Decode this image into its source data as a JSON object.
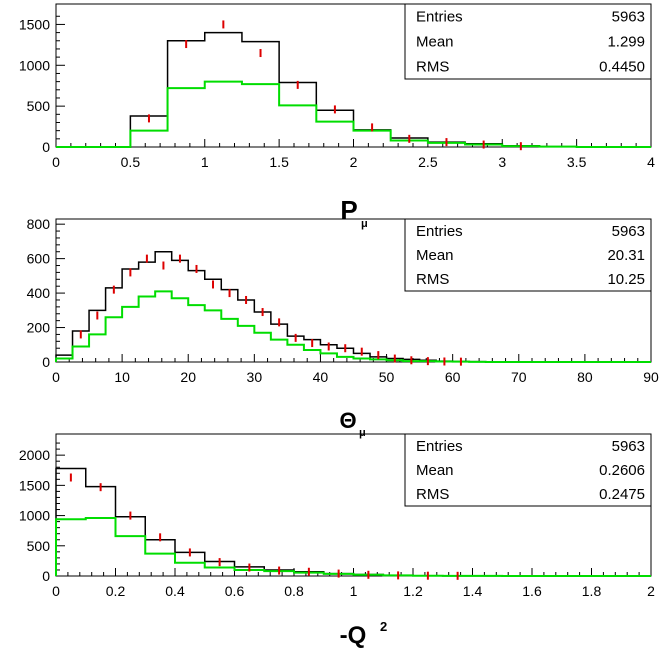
{
  "chart_data": [
    {
      "type": "histogram",
      "xlabel_main": "P",
      "xlabel_sub": "μ",
      "xlim": [
        0,
        4
      ],
      "ylim": [
        0,
        1750
      ],
      "xticks": [
        "0",
        "0.5",
        "1",
        "1.5",
        "2",
        "2.5",
        "3",
        "3.5",
        "4"
      ],
      "yticks": [
        "0",
        "500",
        "1000",
        "1500"
      ],
      "bin_edges": [
        0,
        0.25,
        0.5,
        0.75,
        1.0,
        1.25,
        1.5,
        1.75,
        2.0,
        2.25,
        2.5,
        2.75,
        3.0,
        3.25,
        3.5,
        3.75,
        4.0
      ],
      "series": [
        {
          "color": "#000000",
          "values": [
            0,
            0,
            380,
            1300,
            1400,
            1290,
            790,
            450,
            210,
            110,
            60,
            40,
            15,
            5,
            0,
            0
          ]
        },
        {
          "color": "#00dd00",
          "values": [
            0,
            0,
            200,
            720,
            800,
            770,
            510,
            310,
            200,
            80,
            50,
            30,
            10,
            5,
            0,
            0
          ]
        },
        {
          "color": "#dd0000",
          "style": "points",
          "values": [
            0,
            0,
            350,
            1260,
            1500,
            1150,
            760,
            460,
            240,
            100,
            60,
            30,
            10,
            0,
            0,
            0
          ]
        }
      ],
      "stats": {
        "entries_label": "Entries",
        "entries": "5963",
        "mean_label": "Mean",
        "mean": "1.299",
        "rms_label": "RMS",
        "rms": "0.4450"
      }
    },
    {
      "type": "histogram",
      "xlabel_main": "Θ",
      "xlabel_sub": "μ",
      "xlim": [
        0,
        90
      ],
      "ylim": [
        0,
        830
      ],
      "xticks": [
        "0",
        "10",
        "20",
        "30",
        "40",
        "50",
        "60",
        "70",
        "80",
        "90"
      ],
      "yticks": [
        "0",
        "200",
        "400",
        "600",
        "800"
      ],
      "bin_edges": [
        0,
        2.5,
        5,
        7.5,
        10,
        12.5,
        15,
        17.5,
        20,
        22.5,
        25,
        27.5,
        30,
        32.5,
        35,
        37.5,
        40,
        42.5,
        45,
        47.5,
        50,
        52.5,
        55,
        57.5,
        60,
        62.5,
        65,
        67.5,
        70,
        72.5,
        75,
        77.5,
        80,
        82.5,
        85,
        87.5,
        90
      ],
      "series": [
        {
          "color": "#000000",
          "values": [
            40,
            180,
            300,
            430,
            540,
            580,
            640,
            590,
            530,
            480,
            420,
            360,
            290,
            220,
            150,
            130,
            100,
            80,
            50,
            30,
            20,
            15,
            10,
            5,
            3,
            2,
            1,
            0,
            0,
            0,
            0,
            0,
            0,
            0,
            0,
            0
          ]
        },
        {
          "color": "#00dd00",
          "values": [
            20,
            90,
            160,
            260,
            320,
            380,
            410,
            370,
            330,
            300,
            250,
            210,
            170,
            130,
            100,
            70,
            50,
            30,
            20,
            15,
            10,
            5,
            5,
            3,
            2,
            1,
            0,
            0,
            0,
            0,
            0,
            0,
            0,
            0,
            0,
            0
          ]
        },
        {
          "color": "#dd0000",
          "style": "points",
          "values": [
            0,
            160,
            270,
            420,
            520,
            600,
            560,
            600,
            540,
            450,
            400,
            360,
            290,
            230,
            140,
            110,
            90,
            80,
            60,
            40,
            20,
            10,
            5,
            3,
            2,
            0,
            0,
            0,
            0,
            0,
            0,
            0,
            0,
            0,
            0,
            0
          ]
        }
      ],
      "stats": {
        "entries_label": "Entries",
        "entries": "5963",
        "mean_label": "Mean",
        "mean": "20.31",
        "rms_label": "RMS",
        "rms": "10.25"
      }
    },
    {
      "type": "histogram",
      "xlabel_main": "-Q",
      "xlabel_sup": "2",
      "xlim": [
        0,
        2
      ],
      "ylim": [
        0,
        2350
      ],
      "xticks": [
        "0",
        "0.2",
        "0.4",
        "0.6",
        "0.8",
        "1",
        "1.2",
        "1.4",
        "1.6",
        "1.8",
        "2"
      ],
      "yticks": [
        "0",
        "500",
        "1000",
        "1500",
        "2000"
      ],
      "bin_edges": [
        0,
        0.1,
        0.2,
        0.3,
        0.4,
        0.5,
        0.6,
        0.7,
        0.8,
        0.9,
        1.0,
        1.1,
        1.2,
        1.3,
        1.4,
        1.5,
        1.6,
        1.7,
        1.8,
        1.9,
        2.0
      ],
      "series": [
        {
          "color": "#000000",
          "values": [
            1780,
            1480,
            980,
            600,
            390,
            240,
            150,
            100,
            70,
            40,
            25,
            10,
            5,
            3,
            2,
            1,
            0,
            0,
            0,
            0
          ]
        },
        {
          "color": "#00dd00",
          "values": [
            940,
            960,
            660,
            370,
            220,
            140,
            100,
            80,
            55,
            35,
            20,
            10,
            5,
            3,
            2,
            1,
            0,
            0,
            0,
            0
          ]
        },
        {
          "color": "#dd0000",
          "style": "points",
          "values": [
            1630,
            1470,
            1000,
            640,
            390,
            230,
            140,
            90,
            70,
            40,
            20,
            10,
            5,
            3,
            0,
            0,
            0,
            0,
            0,
            0
          ]
        }
      ],
      "stats": {
        "entries_label": "Entries",
        "entries": "5963",
        "mean_label": "Mean",
        "mean": "0.2606",
        "rms_label": "RMS",
        "rms": "0.2475"
      }
    }
  ]
}
